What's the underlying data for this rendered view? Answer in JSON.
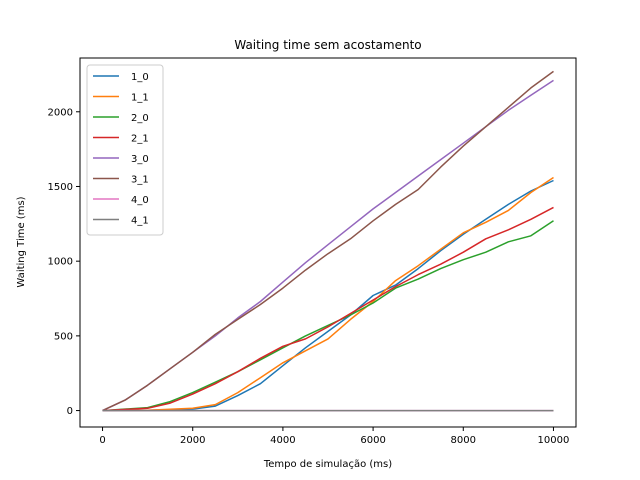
{
  "chart_data": {
    "type": "line",
    "title": "Waiting time sem acostamento",
    "xlabel": "Tempo de simulação (ms)",
    "ylabel": "Waiting Time (ms)",
    "xlim": [
      -500,
      10500
    ],
    "ylim": [
      -110,
      2360
    ],
    "xticks": [
      0,
      2000,
      4000,
      6000,
      8000,
      10000
    ],
    "yticks": [
      0,
      500,
      1000,
      1500,
      2000
    ],
    "legend_position": "upper-left",
    "grid": false,
    "series": [
      {
        "name": "1_0",
        "color": "#1f77b4",
        "points": [
          [
            0,
            0
          ],
          [
            1000,
            2
          ],
          [
            2000,
            10
          ],
          [
            2500,
            30
          ],
          [
            3000,
            100
          ],
          [
            3500,
            180
          ],
          [
            4000,
            300
          ],
          [
            4500,
            420
          ],
          [
            5000,
            530
          ],
          [
            5500,
            640
          ],
          [
            6000,
            770
          ],
          [
            6500,
            840
          ],
          [
            7000,
            950
          ],
          [
            7500,
            1070
          ],
          [
            8000,
            1180
          ],
          [
            8500,
            1280
          ],
          [
            9000,
            1380
          ],
          [
            9500,
            1470
          ],
          [
            10000,
            1540
          ]
        ]
      },
      {
        "name": "1_1",
        "color": "#ff7f0e",
        "points": [
          [
            0,
            0
          ],
          [
            1000,
            2
          ],
          [
            2000,
            15
          ],
          [
            2500,
            40
          ],
          [
            3000,
            120
          ],
          [
            3500,
            220
          ],
          [
            4000,
            320
          ],
          [
            4500,
            400
          ],
          [
            5000,
            480
          ],
          [
            5500,
            610
          ],
          [
            6000,
            730
          ],
          [
            6500,
            870
          ],
          [
            7000,
            970
          ],
          [
            7500,
            1080
          ],
          [
            8000,
            1190
          ],
          [
            8500,
            1260
          ],
          [
            9000,
            1340
          ],
          [
            9500,
            1460
          ],
          [
            10000,
            1560
          ]
        ]
      },
      {
        "name": "2_0",
        "color": "#2ca02c",
        "points": [
          [
            0,
            0
          ],
          [
            1000,
            20
          ],
          [
            1500,
            60
          ],
          [
            2000,
            120
          ],
          [
            2500,
            190
          ],
          [
            3000,
            260
          ],
          [
            3500,
            340
          ],
          [
            4000,
            420
          ],
          [
            4500,
            500
          ],
          [
            5000,
            570
          ],
          [
            5500,
            640
          ],
          [
            6000,
            720
          ],
          [
            6500,
            820
          ],
          [
            7000,
            880
          ],
          [
            7500,
            950
          ],
          [
            8000,
            1010
          ],
          [
            8500,
            1060
          ],
          [
            9000,
            1130
          ],
          [
            9500,
            1170
          ],
          [
            10000,
            1270
          ]
        ]
      },
      {
        "name": "2_1",
        "color": "#d62728",
        "points": [
          [
            0,
            0
          ],
          [
            1000,
            15
          ],
          [
            1500,
            50
          ],
          [
            2000,
            110
          ],
          [
            2500,
            180
          ],
          [
            3000,
            260
          ],
          [
            3500,
            350
          ],
          [
            4000,
            430
          ],
          [
            4500,
            480
          ],
          [
            5000,
            560
          ],
          [
            5500,
            650
          ],
          [
            6000,
            740
          ],
          [
            6500,
            830
          ],
          [
            7000,
            910
          ],
          [
            7500,
            980
          ],
          [
            8000,
            1060
          ],
          [
            8500,
            1150
          ],
          [
            9000,
            1210
          ],
          [
            9500,
            1280
          ],
          [
            10000,
            1360
          ]
        ]
      },
      {
        "name": "3_0",
        "color": "#9467bd",
        "points": [
          [
            0,
            0
          ],
          [
            500,
            70
          ],
          [
            1000,
            170
          ],
          [
            1500,
            280
          ],
          [
            2000,
            390
          ],
          [
            2500,
            500
          ],
          [
            3000,
            620
          ],
          [
            3500,
            730
          ],
          [
            4000,
            860
          ],
          [
            4500,
            990
          ],
          [
            5000,
            1110
          ],
          [
            5500,
            1230
          ],
          [
            6000,
            1350
          ],
          [
            6500,
            1460
          ],
          [
            7000,
            1570
          ],
          [
            7500,
            1680
          ],
          [
            8000,
            1790
          ],
          [
            8500,
            1900
          ],
          [
            9000,
            2010
          ],
          [
            9500,
            2110
          ],
          [
            10000,
            2210
          ]
        ]
      },
      {
        "name": "3_1",
        "color": "#8c564b",
        "points": [
          [
            0,
            0
          ],
          [
            500,
            70
          ],
          [
            1000,
            170
          ],
          [
            1500,
            280
          ],
          [
            2000,
            390
          ],
          [
            2500,
            510
          ],
          [
            3000,
            610
          ],
          [
            3500,
            710
          ],
          [
            4000,
            820
          ],
          [
            4500,
            940
          ],
          [
            5000,
            1050
          ],
          [
            5500,
            1150
          ],
          [
            6000,
            1270
          ],
          [
            6500,
            1380
          ],
          [
            7000,
            1480
          ],
          [
            7500,
            1630
          ],
          [
            8000,
            1770
          ],
          [
            8500,
            1900
          ],
          [
            9000,
            2030
          ],
          [
            9500,
            2160
          ],
          [
            10000,
            2270
          ]
        ]
      },
      {
        "name": "4_0",
        "color": "#e377c2",
        "points": [
          [
            0,
            0
          ],
          [
            10000,
            0
          ]
        ]
      },
      {
        "name": "4_1",
        "color": "#7f7f7f",
        "points": [
          [
            0,
            0
          ],
          [
            10000,
            0
          ]
        ]
      }
    ]
  }
}
